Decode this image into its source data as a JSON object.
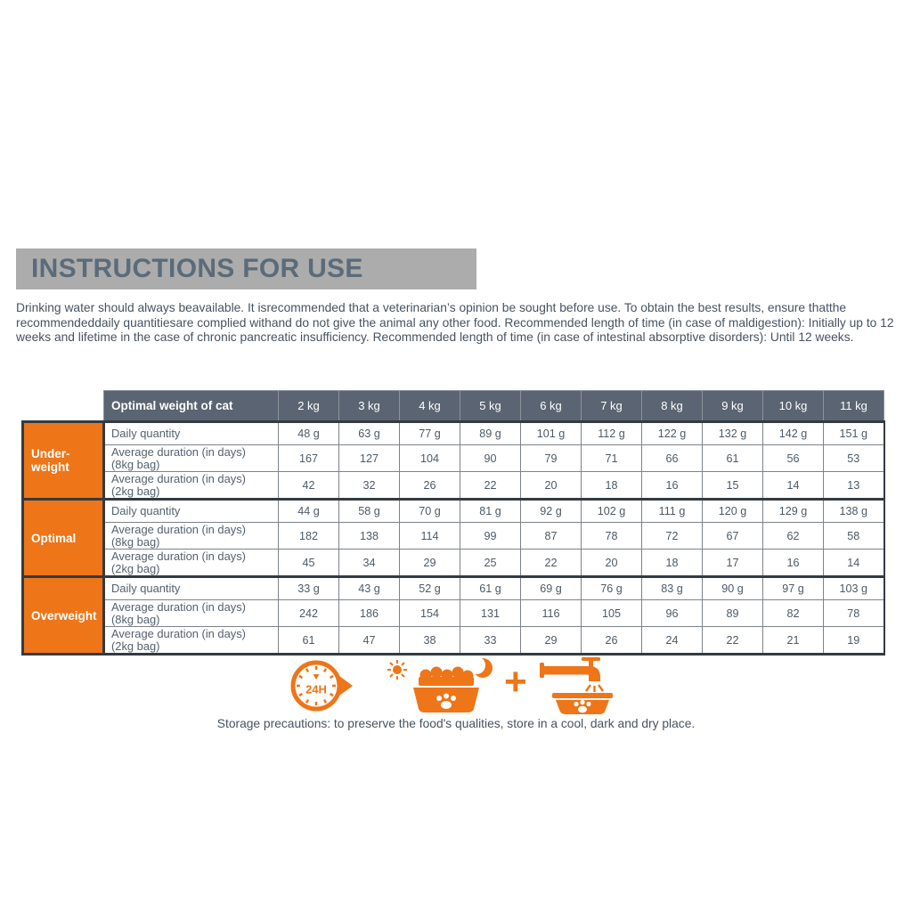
{
  "page": {
    "title": "INSTRUCTIONS FOR USE",
    "intro": "Drinking water should always beavailable. It isrecommended that a veterinarian’s opinion be sought before use. To obtain the best results, ensure thatthe recommendeddaily quantitiesare complied withand do not give the animal any other food. Recommended length of time (in case of maldigestion): Initially up to 12 weeks and lifetime in the case of chronic pancreatic insufficiency. Recommended length of time (in case of intestinal absorptive disorders): Until 12 weeks.",
    "storage_note": "Storage precautions: to preserve the food's qualities, store in a cool, dark and dry place."
  },
  "table": {
    "corner_label": "Optimal weight of cat",
    "weights": [
      "2 kg",
      "3 kg",
      "4 kg",
      "5 kg",
      "6 kg",
      "7 kg",
      "8 kg",
      "9 kg",
      "10 kg",
      "11 kg"
    ],
    "groups": [
      {
        "label": "Under-weight",
        "label_lines": [
          "Under-",
          "weight"
        ],
        "rows": [
          {
            "label_lines": [
              "Daily quantity"
            ],
            "values": [
              "48 g",
              "63 g",
              "77 g",
              "89 g",
              "101 g",
              "112 g",
              "122 g",
              "132 g",
              "142 g",
              "151 g"
            ]
          },
          {
            "label_lines": [
              "Average duration (in days)",
              "(8kg bag)"
            ],
            "values": [
              "167",
              "127",
              "104",
              "90",
              "79",
              "71",
              "66",
              "61",
              "56",
              "53"
            ]
          },
          {
            "label_lines": [
              "Average duration (in days)",
              "(2kg bag)"
            ],
            "values": [
              "42",
              "32",
              "26",
              "22",
              "20",
              "18",
              "16",
              "15",
              "14",
              "13"
            ]
          }
        ]
      },
      {
        "label": "Optimal",
        "label_lines": [
          "Optimal"
        ],
        "rows": [
          {
            "label_lines": [
              "Daily quantity"
            ],
            "values": [
              "44 g",
              "58 g",
              "70 g",
              "81 g",
              "92 g",
              "102 g",
              "111 g",
              "120 g",
              "129 g",
              "138 g"
            ]
          },
          {
            "label_lines": [
              "Average duration (in days)",
              "(8kg bag)"
            ],
            "values": [
              "182",
              "138",
              "114",
              "99",
              "87",
              "78",
              "72",
              "67",
              "62",
              "58"
            ]
          },
          {
            "label_lines": [
              "Average duration (in days)",
              "(2kg bag)"
            ],
            "values": [
              "45",
              "34",
              "29",
              "25",
              "22",
              "20",
              "18",
              "17",
              "16",
              "14"
            ]
          }
        ]
      },
      {
        "label": "Overweight",
        "label_lines": [
          "Overweight"
        ],
        "rows": [
          {
            "label_lines": [
              "Daily quantity"
            ],
            "values": [
              "33 g",
              "43 g",
              "52 g",
              "61 g",
              "69 g",
              "76 g",
              "83 g",
              "90 g",
              "97 g",
              "103 g"
            ]
          },
          {
            "label_lines": [
              "Average duration (in days)",
              "(8kg bag)"
            ],
            "values": [
              "242",
              "186",
              "154",
              "131",
              "116",
              "105",
              "96",
              "89",
              "82",
              "78"
            ]
          },
          {
            "label_lines": [
              "Average duration (in days)",
              "(2kg bag)"
            ],
            "values": [
              "61",
              "47",
              "38",
              "33",
              "29",
              "26",
              "24",
              "22",
              "21",
              "19"
            ]
          }
        ]
      }
    ]
  },
  "icons": {
    "clock_label": "24H",
    "plus_label": "+"
  },
  "colors": {
    "accent_orange": "#ee7518",
    "header_slate": "#5a6472",
    "title_bg": "#acacac",
    "dark_border": "#333a42",
    "text_slate": "#46535f"
  }
}
